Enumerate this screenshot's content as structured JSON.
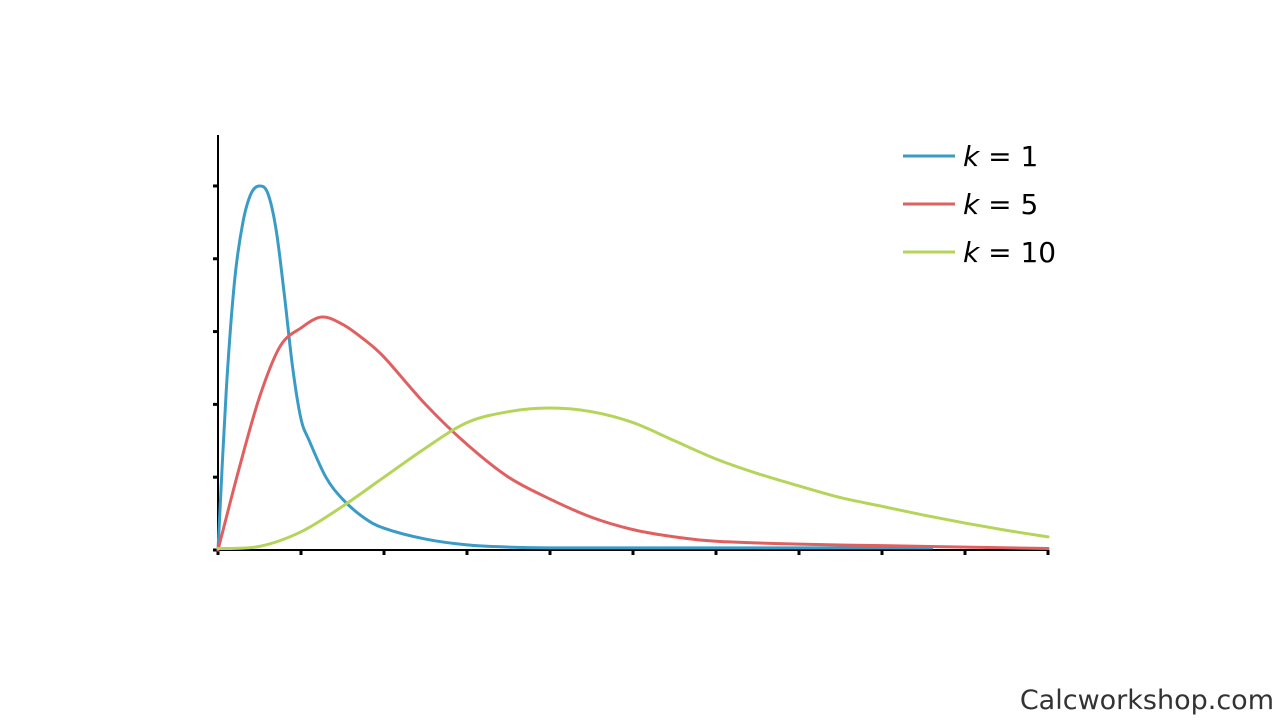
{
  "watermark": "Calcworkshop.com",
  "chart_data": {
    "type": "line",
    "title": "",
    "xlabel": "",
    "ylabel": "",
    "xlim": [
      0,
      10
    ],
    "ylim": [
      0,
      0.57
    ],
    "x_tick_count": 11,
    "y_ticks": [
      0,
      0.1,
      0.2,
      0.3,
      0.4,
      0.5
    ],
    "grid": false,
    "legend_position": "top-right",
    "series": [
      {
        "name": "k = 1",
        "var": "k",
        "value_text": "= 1",
        "color": "#3a9cc6",
        "points": [
          [
            0,
            0
          ],
          [
            0.1,
            0.22
          ],
          [
            0.2,
            0.37
          ],
          [
            0.3,
            0.45
          ],
          [
            0.4,
            0.49
          ],
          [
            0.5,
            0.5
          ],
          [
            0.6,
            0.49
          ],
          [
            0.7,
            0.44
          ],
          [
            0.8,
            0.35
          ],
          [
            0.9,
            0.25
          ],
          [
            1.0,
            0.18
          ],
          [
            1.1,
            0.15
          ],
          [
            1.3,
            0.1
          ],
          [
            1.5,
            0.07
          ],
          [
            1.75,
            0.045
          ],
          [
            2.0,
            0.03
          ],
          [
            2.5,
            0.015
          ],
          [
            3.0,
            0.007
          ],
          [
            3.5,
            0.004
          ],
          [
            4.0,
            0.003
          ],
          [
            5.0,
            0.003
          ],
          [
            6.0,
            0.003
          ],
          [
            7.0,
            0.003
          ],
          [
            8.0,
            0.003
          ],
          [
            8.6,
            0.003
          ]
        ]
      },
      {
        "name": "k = 5",
        "var": "k",
        "value_text": "= 5",
        "color": "#e06060",
        "points": [
          [
            0,
            0
          ],
          [
            0.25,
            0.11
          ],
          [
            0.5,
            0.21
          ],
          [
            0.75,
            0.28
          ],
          [
            1.0,
            0.305
          ],
          [
            1.25,
            0.32
          ],
          [
            1.5,
            0.31
          ],
          [
            1.75,
            0.29
          ],
          [
            2.0,
            0.265
          ],
          [
            2.5,
            0.2
          ],
          [
            3.0,
            0.145
          ],
          [
            3.5,
            0.1
          ],
          [
            4.0,
            0.07
          ],
          [
            4.5,
            0.045
          ],
          [
            5.0,
            0.028
          ],
          [
            5.5,
            0.018
          ],
          [
            6.0,
            0.012
          ],
          [
            7.0,
            0.008
          ],
          [
            8.0,
            0.006
          ],
          [
            9.0,
            0.004
          ],
          [
            10.0,
            0.002
          ]
        ]
      },
      {
        "name": "k = 10",
        "var": "k",
        "value_text": "= 10",
        "color": "#b5d45a",
        "points": [
          [
            0,
            0.002
          ],
          [
            0.5,
            0.005
          ],
          [
            1.0,
            0.025
          ],
          [
            1.5,
            0.06
          ],
          [
            2.0,
            0.1
          ],
          [
            2.5,
            0.14
          ],
          [
            3.0,
            0.175
          ],
          [
            3.5,
            0.19
          ],
          [
            4.0,
            0.195
          ],
          [
            4.5,
            0.19
          ],
          [
            5.0,
            0.175
          ],
          [
            5.5,
            0.15
          ],
          [
            6.0,
            0.125
          ],
          [
            6.5,
            0.105
          ],
          [
            7.0,
            0.088
          ],
          [
            7.5,
            0.072
          ],
          [
            8.0,
            0.06
          ],
          [
            8.5,
            0.048
          ],
          [
            9.0,
            0.037
          ],
          [
            9.5,
            0.027
          ],
          [
            10.0,
            0.018
          ]
        ]
      }
    ]
  }
}
